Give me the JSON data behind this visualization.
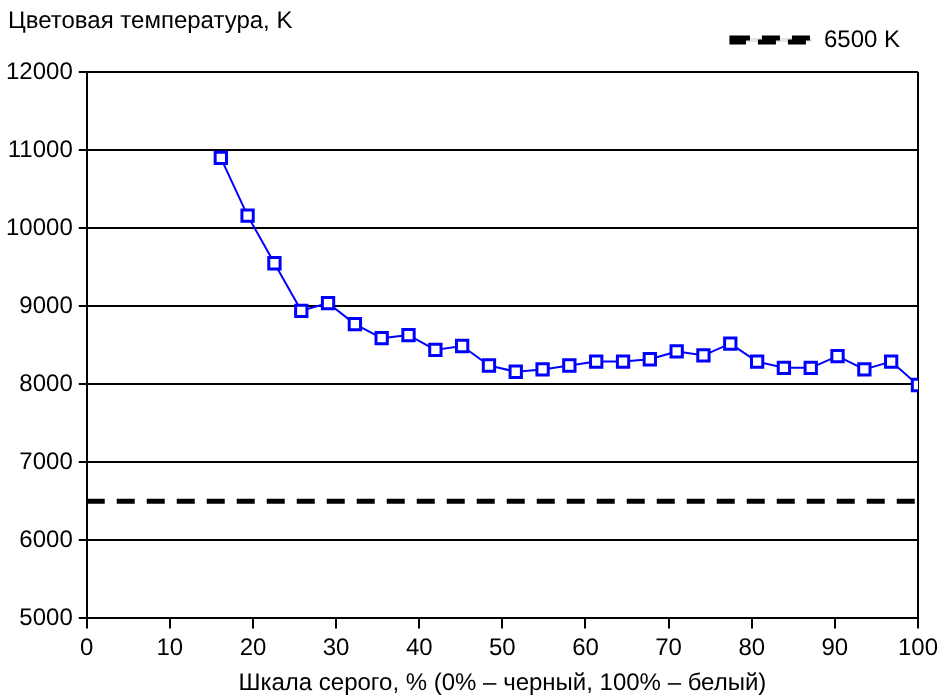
{
  "chart_data": {
    "type": "line",
    "ylabel": "Цветовая температура, K",
    "xlabel": "Шкала серого, % (0% – черный, 100% – белый)",
    "x": [
      16.13,
      19.35,
      22.58,
      25.81,
      29.03,
      32.26,
      35.48,
      38.71,
      41.94,
      45.16,
      48.39,
      51.61,
      54.84,
      58.06,
      61.29,
      64.52,
      67.74,
      70.97,
      74.19,
      77.42,
      80.65,
      83.87,
      87.1,
      90.32,
      93.55,
      96.77,
      100
    ],
    "series": [
      {
        "color": "#0000ff",
        "marker": "square",
        "values": [
          10900,
          10160,
          9550,
          8940,
          9040,
          8770,
          8590,
          8630,
          8440,
          8490,
          8240,
          8160,
          8190,
          8240,
          8290,
          8290,
          8320,
          8420,
          8370,
          8520,
          8290,
          8210,
          8210,
          8360,
          8190,
          8290,
          7990
        ]
      }
    ],
    "ref_lines": [
      {
        "axis": "y",
        "value": 6500,
        "label": "6500 K",
        "color": "#000000",
        "line_style": "dashed"
      }
    ],
    "xlim": [
      0,
      100
    ],
    "xticks": [
      0,
      10,
      20,
      30,
      40,
      50,
      60,
      70,
      80,
      90,
      100
    ],
    "ylim": [
      5000,
      12000
    ],
    "yticks": [
      5000,
      6000,
      7000,
      8000,
      9000,
      10000,
      11000,
      12000
    ],
    "grid": "y",
    "legend": "top right"
  }
}
